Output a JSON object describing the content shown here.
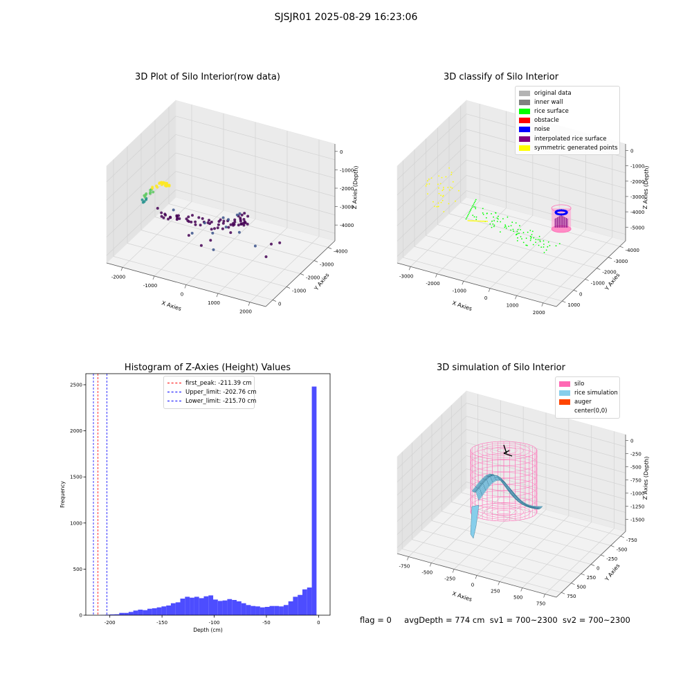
{
  "figure": {
    "suptitle": "SJSJR01 2025-08-29 16:23:06",
    "status": {
      "flag_label": "flag = 0",
      "avg_depth_label": "avgDepth = 774 cm",
      "sv1_label": "sv1 = 700~2300",
      "sv2_label": "sv2 = 700~2300"
    }
  },
  "chart_data": [
    {
      "type": "scatter",
      "title": "3D Plot of Silo Interior(row data)",
      "xlabel": "X Axies",
      "ylabel": "Y Axies",
      "zlabel": "Z Axies (Depth)",
      "xticks": [
        "-2000",
        "-1000",
        "0",
        "1000",
        "2000"
      ],
      "yticks": [
        "0",
        "-1000",
        "-2000",
        "-3000",
        "-4000"
      ],
      "zticks": [
        "0",
        "-1000",
        "-2000",
        "-3000",
        "-4000"
      ],
      "xlim": [
        -2300,
        2300
      ],
      "ylim": [
        -4300,
        500
      ],
      "zlim": [
        -4800,
        300
      ],
      "grid": true,
      "colormap": [
        "#440154",
        "#3b528b",
        "#21918c",
        "#5ec962",
        "#fde725"
      ]
    },
    {
      "type": "scatter",
      "title": "3D classify of Silo Interior",
      "xlabel": "X Axies",
      "ylabel": "Y Axies",
      "zlabel": "Z Axies (Depth)",
      "xticks": [
        "-3000",
        "-2000",
        "-1000",
        "0",
        "1000",
        "2000"
      ],
      "yticks": [
        "1000",
        "0",
        "-1000",
        "-2000",
        "-3000",
        "-4000"
      ],
      "zticks": [
        "0",
        "-1000",
        "-2000",
        "-3000",
        "-4000",
        "-5000"
      ],
      "xlim": [
        -3600,
        2400
      ],
      "ylim": [
        -4500,
        1300
      ],
      "zlim": [
        -5300,
        300
      ],
      "grid": true,
      "legend_position": "upper-right",
      "legend": [
        {
          "label": "original data",
          "color": "#b3b3b3"
        },
        {
          "label": "inner wall",
          "color": "#808080"
        },
        {
          "label": "rice surface",
          "color": "#00ff00"
        },
        {
          "label": "obstacle",
          "color": "#ff0000"
        },
        {
          "label": "noise",
          "color": "#0000ff"
        },
        {
          "label": "interpolated rice surface",
          "color": "#800080"
        },
        {
          "label": "symmetric generated points",
          "color": "#ffff00"
        }
      ]
    },
    {
      "type": "bar",
      "title": "Histogram of Z-Axies (Height) Values",
      "xlabel": "Depth (cm)",
      "ylabel": "Frequency",
      "xlim": [
        -223,
        11
      ],
      "ylim": [
        0,
        2620
      ],
      "xticks": [
        -200,
        -150,
        -100,
        -50,
        0
      ],
      "yticks": [
        0,
        500,
        1000,
        1500,
        2000,
        2500
      ],
      "bar_color": "#4d4dff",
      "bin_width": 4.5,
      "bins_start": [
        -209,
        -204.5,
        -200,
        -195.5,
        -191,
        -186.5,
        -182,
        -177.5,
        -173,
        -168.5,
        -164,
        -159.5,
        -155,
        -150.5,
        -146,
        -141.5,
        -137,
        -132.5,
        -128,
        -123.5,
        -119,
        -114.5,
        -110,
        -105.5,
        -101,
        -96.5,
        -92,
        -87.5,
        -83,
        -78.5,
        -74,
        -69.5,
        -65,
        -60.5,
        -56,
        -51.5,
        -47,
        -42.5,
        -38,
        -33.5,
        -29,
        -24.5,
        -20,
        -15.5,
        -11,
        -6.5,
        -2
      ],
      "values": [
        3,
        5,
        8,
        10,
        25,
        25,
        35,
        50,
        60,
        55,
        70,
        75,
        85,
        95,
        105,
        130,
        140,
        180,
        200,
        190,
        200,
        185,
        205,
        215,
        170,
        155,
        160,
        175,
        165,
        150,
        130,
        110,
        100,
        95,
        85,
        90,
        100,
        100,
        95,
        110,
        150,
        200,
        220,
        280,
        300,
        2480,
        0
      ],
      "vlines": [
        {
          "label": "first_peak: -211.39 cm",
          "x": -211.39,
          "color": "#ff0000"
        },
        {
          "label": "Upper_limit: -202.76 cm",
          "x": -202.76,
          "color": "#0000ff"
        },
        {
          "label": "Lower_limit: -215.70 cm",
          "x": -215.7,
          "color": "#0000ff"
        }
      ],
      "legend_position": "upper-center",
      "grid": false
    },
    {
      "type": "surface",
      "title": "3D simulation of Silo Interior",
      "xlabel": "X Axies",
      "ylabel": "Y Axies",
      "zlabel": "Z Axies (Depth)",
      "xticks": [
        "-750",
        "-500",
        "-250",
        "0",
        "250",
        "500",
        "750"
      ],
      "yticks": [
        "750",
        "500",
        "250",
        "0",
        "-250",
        "-500",
        "-750"
      ],
      "zticks": [
        "0",
        "-250",
        "-500",
        "-750",
        "-1000",
        "-1250",
        "-1500"
      ],
      "xlim": [
        -850,
        850
      ],
      "ylim": [
        -850,
        850
      ],
      "zlim": [
        -1650,
        100
      ],
      "grid": true,
      "legend_position": "upper-right",
      "legend": [
        {
          "label": "silo",
          "color": "#ff69b4"
        },
        {
          "label": "rice simulation",
          "color": "#87ceeb"
        },
        {
          "label": "auger",
          "color": "#ff4500"
        },
        {
          "label": "center(0,0)",
          "color": "#ffffff"
        }
      ]
    }
  ]
}
